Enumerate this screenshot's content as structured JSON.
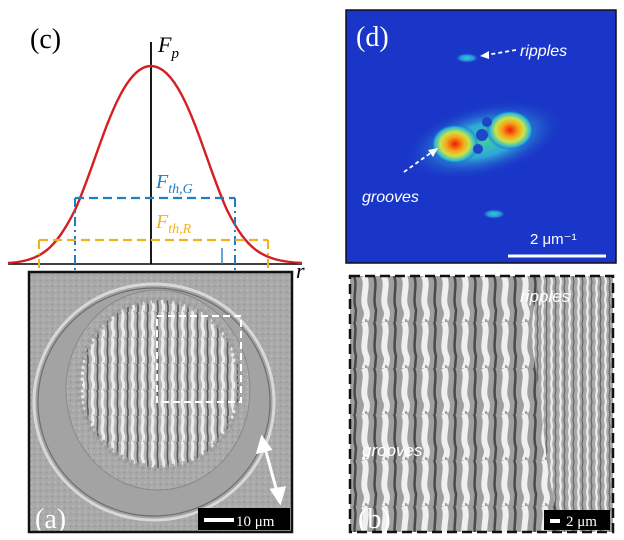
{
  "figure": {
    "panel_c": {
      "label": "(c)",
      "axis_y_label": "F",
      "axis_y_sub": "p",
      "axis_x_label": "r",
      "threshold_g": {
        "main": "F",
        "sub": "th,G"
      },
      "threshold_r": {
        "main": "F",
        "sub": "th,R"
      }
    },
    "panel_a": {
      "label": "(a)",
      "scalebar": "10 μm"
    },
    "panel_b": {
      "label": "(b)",
      "text_ripples": "ripples",
      "text_grooves": "grooves",
      "scalebar": "2 μm"
    },
    "panel_d": {
      "label": "(d)",
      "text_ripples": "ripples",
      "text_grooves": "grooves",
      "scalebar": "2 μm⁻¹"
    },
    "colors": {
      "gaussian": "#d42020",
      "threshold_g": "#1f7fc0",
      "threshold_r": "#f1b21f",
      "fft_background": "#1a36c8",
      "sem_gray": "#a8a8a8"
    }
  }
}
